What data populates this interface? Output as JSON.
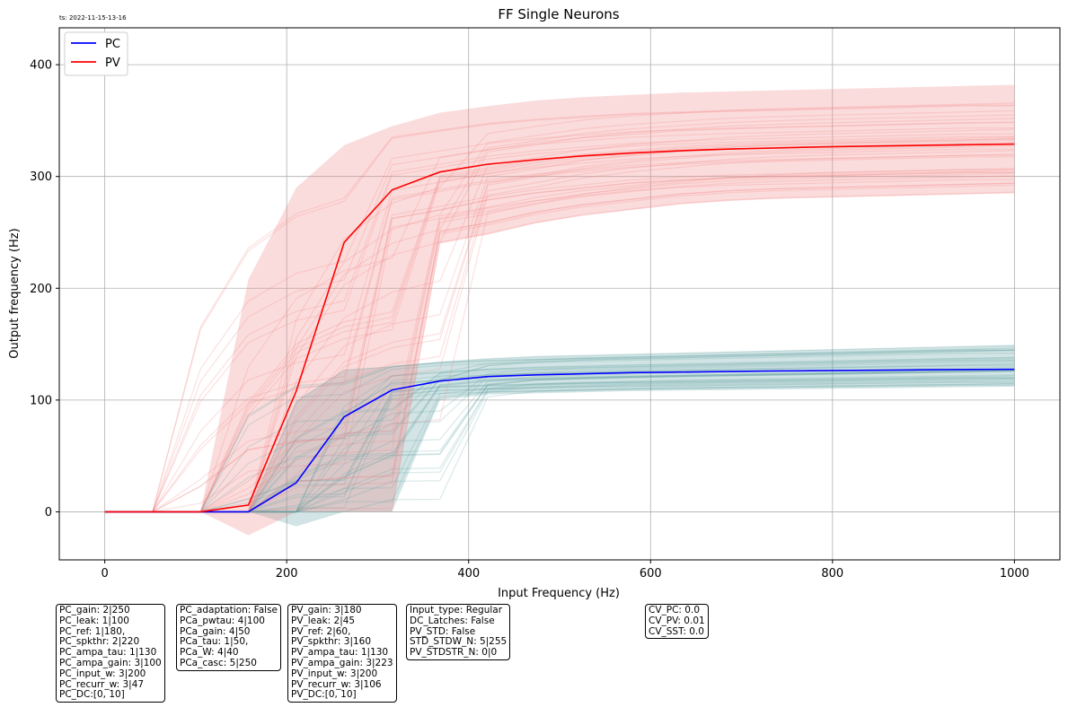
{
  "timestamp": "ts: 2022-11-15-13-16",
  "chart_data": {
    "type": "line",
    "title": "FF Single Neurons",
    "xlabel": "Input Frequency (Hz)",
    "ylabel": "Output frequency (Hz)",
    "xlim": [
      -50,
      1050
    ],
    "ylim": [
      -43,
      433
    ],
    "xticks": [
      0,
      200,
      400,
      600,
      800,
      1000
    ],
    "yticks": [
      0,
      100,
      200,
      300,
      400
    ],
    "grid": true,
    "legend_position": "top-left",
    "x": [
      0,
      52.6,
      105.3,
      157.9,
      210.5,
      263.2,
      315.8,
      368.4,
      421.1,
      473.7,
      526.3,
      578.9,
      631.6,
      684.2,
      736.8,
      789.5,
      842.1,
      894.7,
      947.4,
      1000
    ],
    "series": [
      {
        "name": "PC",
        "color": "#0000ff",
        "values": [
          0,
          0,
          0,
          0,
          26,
          85,
          109,
          117,
          121,
          122.5,
          123.5,
          124.5,
          125,
          125.5,
          126,
          126.3,
          126.6,
          127,
          127.3,
          127.5
        ]
      },
      {
        "name": "PV",
        "color": "#ff0000",
        "values": [
          0,
          0,
          0,
          6,
          108,
          241,
          288,
          304,
          311,
          315,
          318.5,
          321,
          323,
          324.5,
          325.5,
          326.5,
          327.2,
          327.8,
          328.4,
          329
        ]
      }
    ],
    "bands": [
      {
        "series": "PC",
        "color": "#5f9ea0",
        "lower": [
          0,
          0,
          0,
          0,
          -13,
          0,
          0,
          100,
          105,
          106,
          107,
          108,
          108.5,
          109,
          109.5,
          110,
          110.5,
          111,
          111.5,
          112
        ],
        "upper": [
          0,
          0,
          0,
          0,
          99,
          127,
          130,
          134,
          137,
          139,
          140,
          141,
          142,
          143,
          144,
          145,
          146,
          147,
          148,
          149
        ]
      },
      {
        "series": "PV",
        "color": "#f08080",
        "lower": [
          0,
          0,
          0,
          -21,
          0,
          0,
          0,
          240,
          248,
          258,
          265,
          270,
          275,
          278,
          280,
          281,
          282,
          283,
          284,
          285
        ],
        "upper": [
          0,
          0,
          0,
          208,
          290,
          328,
          345,
          357,
          363,
          368,
          371,
          373,
          375,
          376,
          377,
          378,
          379,
          380,
          381,
          382
        ]
      }
    ]
  },
  "param_boxes": [
    {
      "id": "pc-params",
      "lines": [
        "PC_gain: 2|250",
        "PC_leak: 1|100",
        "PC_ref: 1|180,",
        "PC_spkthr: 2|220",
        "PC_ampa_tau: 1|130",
        "PC_ampa_gain: 3|100",
        "PC_input_w: 3|200",
        "PC_recurr_w: 3|47",
        "PC_DC:[0, 10]"
      ]
    },
    {
      "id": "pc-adaptation-params",
      "lines": [
        "PC_adaptation: False",
        "PCa_pwtau: 4|100",
        "PCa_gain: 4|50",
        "PCa_tau: 1|50,",
        "PCa_W: 4|40",
        "PCa_casc: 5|250"
      ]
    },
    {
      "id": "pv-params",
      "lines": [
        "PV_gain: 3|180",
        "PV_leak: 2|45",
        "PV_ref: 2|60,",
        "PV_spkthr: 3|160",
        "PV_ampa_tau: 1|130",
        "PV_ampa_gain: 3|223",
        "PV_input_w: 3|200",
        "PV_recurr_w: 3|106",
        "PV_DC:[0, 10]"
      ]
    },
    {
      "id": "input-params",
      "lines": [
        "Input_type: Regular",
        "DC_Latches: False",
        "PV_STD: False",
        "STD_STDW_N: 5|255",
        "PV_STDSTR_N: 0|0"
      ]
    },
    {
      "id": "cv-params",
      "lines": [
        "CV_PC: 0.0",
        "CV_PV: 0.01",
        "CV_SST: 0.0"
      ]
    }
  ]
}
